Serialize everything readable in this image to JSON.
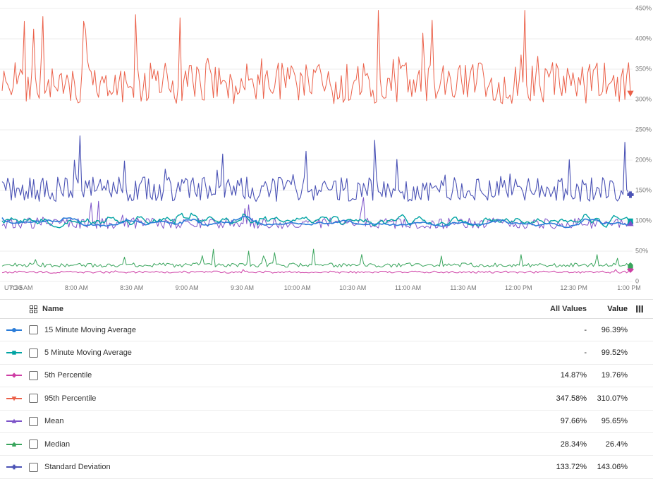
{
  "chart_data": {
    "type": "line",
    "title": "",
    "x_axis": {
      "timezone": "UTC-5",
      "ticks": [
        "7:30 AM",
        "8:00 AM",
        "8:30 AM",
        "9:00 AM",
        "9:30 AM",
        "10:00 AM",
        "10:30 AM",
        "11:00 AM",
        "11:30 AM",
        "12:00 PM",
        "12:30 PM",
        "1:00 PM"
      ]
    },
    "y_axis": {
      "unit": "%",
      "min": 0,
      "max": 450,
      "position": "right",
      "grid": true,
      "ticks": [
        "450%",
        "400%",
        "350%",
        "300%",
        "250%",
        "200%",
        "150%",
        "100%",
        "50%",
        "0"
      ],
      "tick_values": [
        450,
        400,
        350,
        300,
        250,
        200,
        150,
        100,
        50,
        0
      ]
    },
    "points": 340,
    "legend_position": "bottom-table",
    "series": [
      {
        "name": "15 Minute Moving Average",
        "color": "#2b7cd8",
        "marker": "circle",
        "width": 1.6,
        "z": 6,
        "all_values": "-",
        "value": "96.39%",
        "gen": {
          "base": 96,
          "amp": 12,
          "smooth": 10,
          "spike_prob": 0.05,
          "spike_amp": 40,
          "end": 96.39
        }
      },
      {
        "name": "5 Minute Moving Average",
        "color": "#00a3a3",
        "marker": "square",
        "width": 1.4,
        "z": 5,
        "all_values": "-",
        "value": "99.52%",
        "gen": {
          "base": 99,
          "amp": 13,
          "smooth": 4,
          "spike_prob": 0.05,
          "spike_amp": 35,
          "end": 99.52
        }
      },
      {
        "name": "5th Percentile",
        "color": "#ce3ea5",
        "marker": "diamond",
        "width": 1,
        "z": 1,
        "all_values": "14.87%",
        "value": "19.76%",
        "gen": {
          "base": 15.5,
          "amp": 1.8,
          "smooth": 0,
          "spike_prob": 0.02,
          "spike_amp": 4,
          "min": 11,
          "end": 19.76
        }
      },
      {
        "name": "95th Percentile",
        "color": "#eb6049",
        "marker": "triangle-down",
        "width": 1,
        "z": 2,
        "all_values": "347.58%",
        "value": "310.07%",
        "gen": {
          "base": 327,
          "amp": 34,
          "smooth": 0,
          "spike_prob": 0.07,
          "spike_amp": 115,
          "min": 284,
          "max": 447,
          "end": 310.07
        }
      },
      {
        "name": "Mean",
        "color": "#7d54c9",
        "marker": "triangle-up",
        "width": 1,
        "z": 3,
        "all_values": "97.66%",
        "value": "95.65%",
        "gen": {
          "base": 96,
          "amp": 9,
          "smooth": 0,
          "spike_prob": 0.05,
          "spike_amp": 46,
          "min": 82,
          "max": 160,
          "end": 95.65
        }
      },
      {
        "name": "Median",
        "color": "#3aa55d",
        "marker": "home",
        "width": 1,
        "z": 2,
        "all_values": "28.34%",
        "value": "26.4%",
        "gen": {
          "base": 27,
          "amp": 3.5,
          "smooth": 0,
          "spike_prob": 0.04,
          "spike_amp": 30,
          "min": 21,
          "max": 58,
          "end": 26.4
        }
      },
      {
        "name": "Standard Deviation",
        "color": "#4a52b5",
        "marker": "plus",
        "width": 1.1,
        "z": 2,
        "all_values": "133.72%",
        "value": "143.06%",
        "gen": {
          "base": 152,
          "amp": 20,
          "smooth": 0,
          "spike_prob": 0.06,
          "spike_amp": 72,
          "min": 128,
          "max": 240,
          "end": 143.06
        }
      }
    ]
  },
  "table": {
    "header": {
      "name": "Name",
      "all_values": "All Values",
      "value": "Value"
    },
    "icons": {
      "left": "grouping-grid-icon",
      "right": "column-settings-icon"
    }
  }
}
